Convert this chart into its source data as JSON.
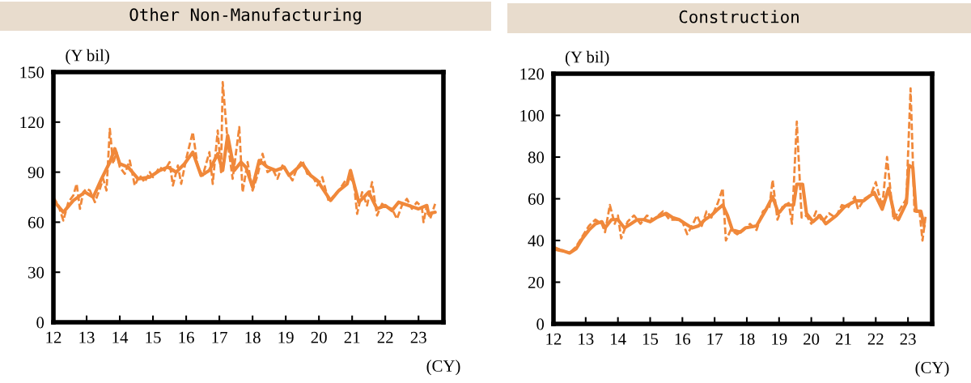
{
  "chart_data": [
    {
      "type": "line",
      "title": "Other Non-Manufacturing",
      "ylabel": "(Y bil)",
      "xlabel": "(CY)",
      "xlim": [
        12,
        23.75
      ],
      "xticks": [
        12,
        13,
        14,
        15,
        16,
        17,
        18,
        19,
        20,
        21,
        22,
        23
      ],
      "ylim": [
        0,
        150
      ],
      "yticks": [
        0,
        30,
        60,
        90,
        120,
        150
      ],
      "grid": false,
      "legend": false,
      "series": [
        {
          "color": "#f0883a",
          "line_style": "dashed",
          "x": [
            12.0,
            12.15,
            12.3,
            12.45,
            12.6,
            12.7,
            12.8,
            12.9,
            13.0,
            13.1,
            13.25,
            13.4,
            13.5,
            13.6,
            13.7,
            13.8,
            13.9,
            14.0,
            14.15,
            14.3,
            14.45,
            14.6,
            14.75,
            14.9,
            15.0,
            15.2,
            15.35,
            15.5,
            15.6,
            15.75,
            15.85,
            16.0,
            16.2,
            16.35,
            16.5,
            16.7,
            16.8,
            16.95,
            17.05,
            17.1,
            17.25,
            17.4,
            17.6,
            17.7,
            17.85,
            18.0,
            18.15,
            18.3,
            18.45,
            18.6,
            18.75,
            18.9,
            19.05,
            19.2,
            19.35,
            19.5,
            19.65,
            19.8,
            19.95,
            20.1,
            20.3,
            20.45,
            20.6,
            20.8,
            20.95,
            21.05,
            21.15,
            21.3,
            21.45,
            21.6,
            21.75,
            21.9,
            22.05,
            22.2,
            22.35,
            22.5,
            22.65,
            22.8,
            22.95,
            23.1,
            23.15,
            23.25,
            23.35,
            23.5
          ],
          "values": [
            75,
            70,
            61,
            72,
            76,
            83,
            68,
            78,
            80,
            79,
            72,
            80,
            86,
            79,
            116,
            95,
            102,
            93,
            89,
            97,
            82,
            88,
            84,
            90,
            87,
            93,
            91,
            96,
            82,
            94,
            83,
            98,
            114,
            93,
            88,
            102,
            83,
            115,
            90,
            144,
            108,
            86,
            117,
            78,
            96,
            79,
            88,
            101,
            90,
            92,
            86,
            94,
            90,
            85,
            93,
            97,
            89,
            88,
            82,
            87,
            72,
            76,
            79,
            85,
            86,
            84,
            65,
            78,
            70,
            84,
            64,
            71,
            69,
            68,
            62,
            70,
            74,
            68,
            72,
            69,
            60,
            70,
            62,
            71
          ]
        },
        {
          "color": "#f0883a",
          "line_style": "solid",
          "x": [
            12.0,
            12.3,
            12.6,
            12.95,
            13.2,
            13.45,
            13.7,
            13.85,
            14.0,
            14.25,
            14.55,
            14.9,
            15.2,
            15.45,
            15.7,
            15.95,
            16.2,
            16.45,
            16.7,
            16.95,
            17.1,
            17.25,
            17.45,
            17.65,
            17.8,
            18.0,
            18.2,
            18.45,
            18.7,
            18.95,
            19.1,
            19.5,
            19.75,
            19.95,
            20.35,
            20.6,
            20.85,
            20.95,
            21.2,
            21.35,
            21.5,
            21.75,
            22.0,
            22.2,
            22.4,
            22.7,
            23.0,
            23.25,
            23.3,
            23.5
          ],
          "values": [
            73,
            66,
            73,
            78,
            75,
            86,
            96,
            104,
            95,
            93,
            86,
            87,
            91,
            93,
            90,
            95,
            102,
            88,
            91,
            101,
            91,
            112,
            91,
            96,
            93,
            81,
            97,
            93,
            91,
            93,
            88,
            95,
            88,
            85,
            73,
            79,
            83,
            91,
            72,
            75,
            78,
            68,
            70,
            67,
            72,
            70,
            68,
            70,
            65,
            66
          ]
        }
      ]
    },
    {
      "type": "line",
      "title": "Construction",
      "ylabel": "(Y bil)",
      "xlabel": "(CY)",
      "xlim": [
        12,
        23.75
      ],
      "xticks": [
        12,
        13,
        14,
        15,
        16,
        17,
        18,
        19,
        20,
        21,
        22,
        23
      ],
      "ylim": [
        0,
        120
      ],
      "yticks": [
        0,
        20,
        40,
        60,
        80,
        100,
        120
      ],
      "grid": false,
      "legend": false,
      "series": [
        {
          "color": "#f0883a",
          "line_style": "dashed",
          "x": [
            12.0,
            12.3,
            12.5,
            12.7,
            12.9,
            13.1,
            13.3,
            13.5,
            13.6,
            13.75,
            13.9,
            14.0,
            14.1,
            14.3,
            14.5,
            14.7,
            14.9,
            15.1,
            15.4,
            15.6,
            15.8,
            16.0,
            16.15,
            16.3,
            16.45,
            16.6,
            16.75,
            16.9,
            17.1,
            17.25,
            17.35,
            17.5,
            17.7,
            17.9,
            18.1,
            18.3,
            18.5,
            18.7,
            18.8,
            18.95,
            19.1,
            19.3,
            19.4,
            19.55,
            19.7,
            19.85,
            20.0,
            20.15,
            20.35,
            20.55,
            20.75,
            20.95,
            21.15,
            21.35,
            21.45,
            21.65,
            21.85,
            22.0,
            22.2,
            22.35,
            22.55,
            22.75,
            22.95,
            23.08,
            23.2,
            23.35,
            23.45,
            23.55
          ],
          "values": [
            37,
            35,
            34,
            37,
            42,
            47,
            50,
            48,
            44,
            57,
            48,
            52,
            41,
            49,
            52,
            48,
            52,
            50,
            54,
            50,
            50,
            49,
            43,
            47,
            52,
            47,
            54,
            51,
            58,
            65,
            40,
            45,
            43,
            45,
            48,
            45,
            54,
            56,
            69,
            50,
            56,
            58,
            48,
            97,
            51,
            52,
            48,
            54,
            49,
            53,
            51,
            57,
            56,
            61,
            55,
            60,
            62,
            68,
            56,
            80,
            50,
            55,
            60,
            113,
            54,
            55,
            40,
            52
          ]
        },
        {
          "color": "#f0883a",
          "line_style": "solid",
          "x": [
            12.0,
            12.3,
            12.5,
            12.7,
            12.9,
            13.1,
            13.3,
            13.5,
            13.6,
            13.8,
            14.0,
            14.2,
            14.4,
            14.6,
            14.8,
            15.0,
            15.2,
            15.5,
            15.7,
            15.9,
            16.1,
            16.3,
            16.5,
            16.7,
            16.9,
            17.1,
            17.25,
            17.4,
            17.55,
            17.8,
            17.95,
            18.3,
            18.6,
            18.8,
            18.98,
            19.2,
            19.45,
            19.55,
            19.73,
            19.85,
            20.05,
            20.27,
            20.45,
            20.78,
            21.02,
            21.37,
            21.62,
            21.95,
            22.2,
            22.4,
            22.58,
            22.7,
            22.95,
            23.03,
            23.15,
            23.25,
            23.4,
            23.5
          ],
          "values": [
            36,
            35,
            34,
            36,
            41,
            45,
            48,
            49,
            46,
            50,
            50,
            46,
            48,
            50,
            50,
            49,
            51,
            53,
            51,
            50,
            48,
            46,
            47,
            50,
            52,
            55,
            57,
            52,
            45,
            44,
            46,
            47,
            55,
            61,
            53,
            57,
            57,
            67,
            67,
            53,
            49,
            52,
            48,
            52,
            56,
            59,
            59,
            63,
            55,
            65,
            52,
            50,
            58,
            76,
            75,
            54,
            54,
            47
          ]
        }
      ]
    }
  ]
}
